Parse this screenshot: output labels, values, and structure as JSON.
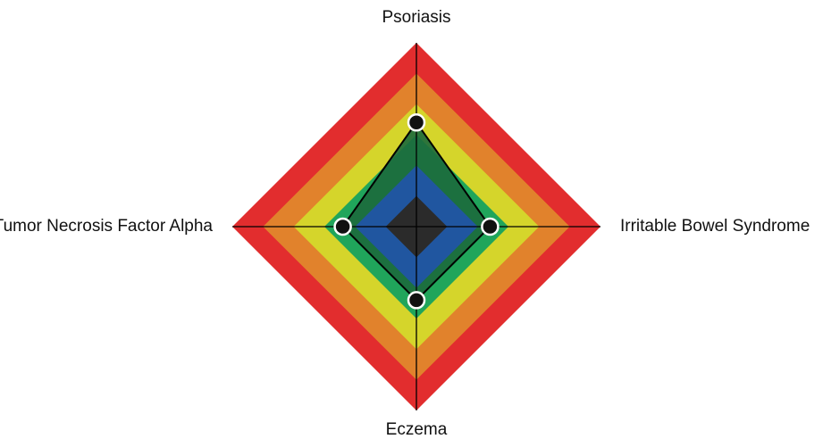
{
  "chart_data": {
    "type": "radar",
    "categories": [
      "Psoriasis",
      "Irritable Bowel Syndrome",
      "Eczema",
      "Tumor Necrosis Factor Alpha"
    ],
    "values": [
      3.4,
      2.4,
      2.4,
      2.4
    ],
    "rlim": [
      0,
      6
    ],
    "bands": [
      {
        "level": 6,
        "color": "#e22d2e"
      },
      {
        "level": 5,
        "color": "#e1822c"
      },
      {
        "level": 4,
        "color": "#d5d52b"
      },
      {
        "level": 3,
        "color": "#20a55b"
      },
      {
        "level": 2,
        "color": "#2056a0"
      },
      {
        "level": 1,
        "color": "#2b2b2b"
      }
    ],
    "fill_color": "#1c6a3c",
    "line_color": "#000000",
    "marker_color": "#111111"
  }
}
